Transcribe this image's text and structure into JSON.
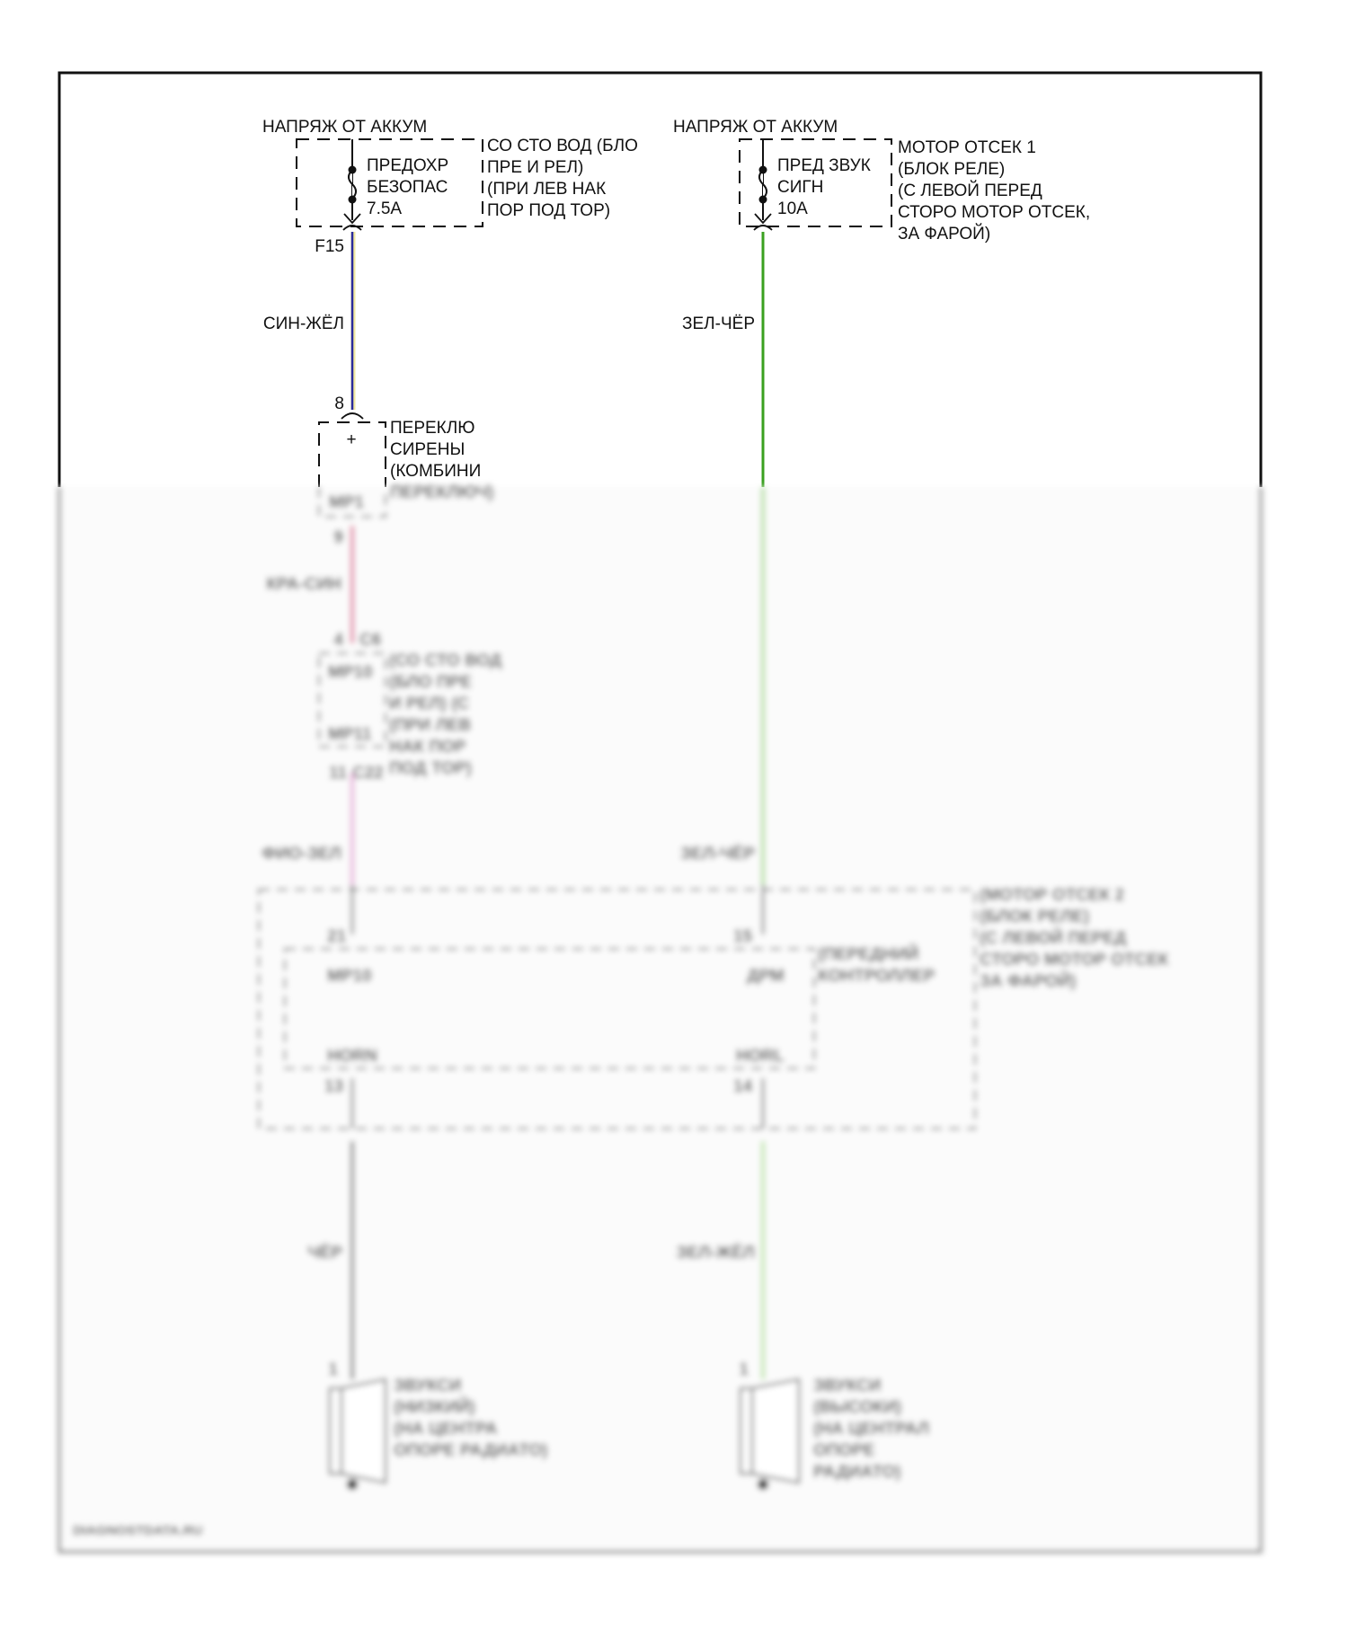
{
  "colors": {
    "wire_blue_yellow": "#2b2b9c",
    "wire_green_black": "#3aa020",
    "wire_pink": "#e0709a",
    "wire_light_pink": "#e6a8d8",
    "wire_light_green": "#b8e4a0",
    "wire_black": "#7a7a7a"
  },
  "left_circuit": {
    "supply_label": "НАПРЯЖ ОТ АККУМ",
    "fuse_lines": [
      "ПРЕДОХР",
      "БЕЗОПАС",
      "7.5A"
    ],
    "fuse_box_lines": [
      "СО СТО ВОД (БЛО",
      "ПРЕ И РЕЛ)",
      "(ПРИ ЛЕВ НАК",
      "ПОР ПОД ТОР)"
    ],
    "fuse_pin": "F15",
    "wire1_label": "СИН-ЖЁЛ",
    "switch_pin_in": "8",
    "switch_plus": "+",
    "switch_lines": [
      "ПЕРЕКЛЮ",
      "СИРЕНЫ",
      "(КОМБИНИ",
      "ПЕРЕКЛЮЧ)"
    ],
    "switch_conn": "МР1",
    "switch_pin_out": "9",
    "wire2_label": "КРА-СИН",
    "junction_pin_in": "4",
    "junction_conn_in": "C6",
    "junction_lines": [
      "(СО СТО ВОД",
      "(БЛО ПРЕ",
      "И РЕЛ) (С",
      "(ПРИ ЛЕВ",
      "НАК ПОР",
      "ПОД ТОР)"
    ],
    "junction_conn_a": "МР10",
    "junction_conn_b": "МР11",
    "junction_pin_out": "11",
    "junction_conn_out": "C22",
    "wire3_label": "ФИО-ЗЕЛ",
    "horn_lines": [
      "ЗВУКСИ",
      "(НИЗКИЙ)",
      "(НА ЦЕНТРА",
      "ОПОРЕ РАДИАТО)"
    ],
    "horn_pin": "1",
    "wire4_label": "ЧЁР"
  },
  "right_circuit": {
    "supply_label": "НАПРЯЖ ОТ АККУМ",
    "fuse_lines": [
      "ПРЕД ЗВУК",
      "СИГН",
      "10A"
    ],
    "fuse_box_lines": [
      "МОТОР ОТСЕК 1",
      "(БЛОК РЕЛЕ)",
      "(С ЛЕВОЙ ПЕРЕД",
      "СТОРО МОТОР ОТСЕК,",
      "ЗА ФАРОЙ)"
    ],
    "wire1_label": "ЗЕЛ-ЧЁР",
    "wire2_label": "ЗЕЛ-ЧЁР",
    "horn_lines": [
      "ЗВУКСИ",
      "(ВЫСОКИ)",
      "(НА ЦЕНТРАЛ",
      "ОПОРЕ",
      "РАДИАТО)"
    ],
    "horn_pin": "1",
    "wire4_label": "ЗЕЛ-ЖЁЛ"
  },
  "relay_box": {
    "lines": [
      "(МОТОР ОТСЕК 2",
      "(БЛОК РЕЛЕ)",
      "(С ЛЕВОЙ ПЕРЕД",
      "СТОРО МОТОР ОТСЕК",
      "ЗА ФАРОЙ)"
    ],
    "controller_lines": [
      "(ПЕРЕДНИЙ",
      "КОНТРОЛЛЕР"
    ],
    "left_pin_in": "21",
    "right_pin_in": "15",
    "left_conn": "МР10",
    "right_conn": "ДРМ",
    "left_term": "HORN",
    "right_term": "HORL",
    "left_pin_out": "13",
    "right_pin_out": "14"
  },
  "watermark": "DIAGNOSTDATA.RU"
}
